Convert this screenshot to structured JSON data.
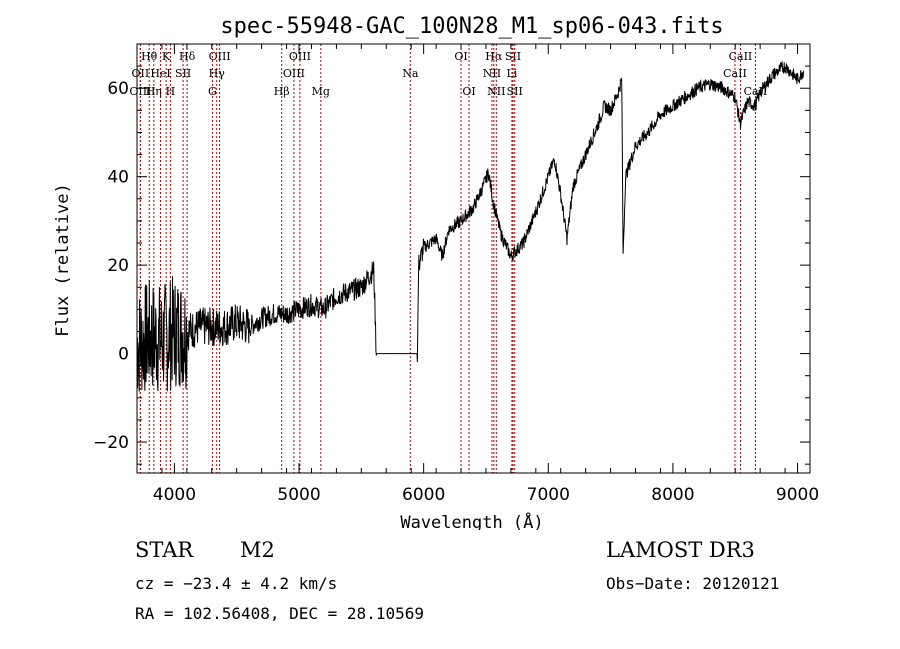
{
  "chart_data": {
    "type": "line",
    "title": "spec-55948-GAC_100N28_M1_sp06-043.fits",
    "xlabel": "Wavelength (Å)",
    "ylabel": "Flux (relative)",
    "xlim": [
      3700,
      9100
    ],
    "ylim": [
      -27,
      70
    ],
    "xticks": [
      4000,
      5000,
      6000,
      7000,
      8000,
      9000
    ],
    "yticks": [
      -20,
      0,
      20,
      40,
      60
    ],
    "line_color": "#000000",
    "marker_color": "#b00000",
    "spectrum_trend": [
      {
        "x": 3700,
        "y": 2
      },
      {
        "x": 3800,
        "y": 4
      },
      {
        "x": 3900,
        "y": 3
      },
      {
        "x": 4000,
        "y": 5
      },
      {
        "x": 4100,
        "y": 5
      },
      {
        "x": 4200,
        "y": 6
      },
      {
        "x": 4300,
        "y": 6
      },
      {
        "x": 4400,
        "y": 6
      },
      {
        "x": 4500,
        "y": 7
      },
      {
        "x": 4600,
        "y": 6
      },
      {
        "x": 4700,
        "y": 8
      },
      {
        "x": 4800,
        "y": 9
      },
      {
        "x": 4900,
        "y": 9
      },
      {
        "x": 5000,
        "y": 10
      },
      {
        "x": 5100,
        "y": 11
      },
      {
        "x": 5200,
        "y": 10
      },
      {
        "x": 5300,
        "y": 13
      },
      {
        "x": 5400,
        "y": 14
      },
      {
        "x": 5500,
        "y": 15
      },
      {
        "x": 5600,
        "y": 19
      },
      {
        "x": 5620,
        "y": 0
      },
      {
        "x": 5950,
        "y": 0
      },
      {
        "x": 5960,
        "y": 20
      },
      {
        "x": 6000,
        "y": 24
      },
      {
        "x": 6100,
        "y": 26
      },
      {
        "x": 6150,
        "y": 22
      },
      {
        "x": 6200,
        "y": 28
      },
      {
        "x": 6300,
        "y": 30
      },
      {
        "x": 6400,
        "y": 33
      },
      {
        "x": 6480,
        "y": 38
      },
      {
        "x": 6520,
        "y": 41
      },
      {
        "x": 6560,
        "y": 34
      },
      {
        "x": 6620,
        "y": 27
      },
      {
        "x": 6700,
        "y": 22
      },
      {
        "x": 6800,
        "y": 25
      },
      {
        "x": 6900,
        "y": 32
      },
      {
        "x": 7050,
        "y": 44
      },
      {
        "x": 7100,
        "y": 36
      },
      {
        "x": 7150,
        "y": 26
      },
      {
        "x": 7200,
        "y": 38
      },
      {
        "x": 7300,
        "y": 45
      },
      {
        "x": 7400,
        "y": 52
      },
      {
        "x": 7450,
        "y": 56
      },
      {
        "x": 7500,
        "y": 55
      },
      {
        "x": 7560,
        "y": 59
      },
      {
        "x": 7590,
        "y": 62
      },
      {
        "x": 7600,
        "y": 22
      },
      {
        "x": 7620,
        "y": 40
      },
      {
        "x": 7700,
        "y": 47
      },
      {
        "x": 7800,
        "y": 50
      },
      {
        "x": 7900,
        "y": 54
      },
      {
        "x": 8000,
        "y": 56
      },
      {
        "x": 8100,
        "y": 58
      },
      {
        "x": 8200,
        "y": 60
      },
      {
        "x": 8300,
        "y": 61
      },
      {
        "x": 8400,
        "y": 60
      },
      {
        "x": 8500,
        "y": 58
      },
      {
        "x": 8540,
        "y": 52
      },
      {
        "x": 8600,
        "y": 57
      },
      {
        "x": 8660,
        "y": 56
      },
      {
        "x": 8700,
        "y": 59
      },
      {
        "x": 8800,
        "y": 63
      },
      {
        "x": 8900,
        "y": 65
      },
      {
        "x": 9000,
        "y": 62
      },
      {
        "x": 9050,
        "y": 64
      }
    ],
    "line_markers": [
      {
        "label": "Hθ",
        "x": 3798,
        "row": 0
      },
      {
        "label": "K",
        "x": 3934,
        "row": 0
      },
      {
        "label": "Hδ",
        "x": 4102,
        "row": 0
      },
      {
        "label": "OIII",
        "x": 4363,
        "row": 0
      },
      {
        "label": "OIII",
        "x": 5007,
        "row": 0
      },
      {
        "label": "OI",
        "x": 6300,
        "row": 0
      },
      {
        "label": "Hα",
        "x": 6563,
        "row": 0
      },
      {
        "label": "SII",
        "x": 6717,
        "row": 0
      },
      {
        "label": "CaII",
        "x": 8542,
        "row": 0
      },
      {
        "label": "OII",
        "x": 3727,
        "row": 1
      },
      {
        "label": "HeI",
        "x": 3889,
        "row": 1
      },
      {
        "label": "SII",
        "x": 4070,
        "row": 1
      },
      {
        "label": "Hγ",
        "x": 4340,
        "row": 1
      },
      {
        "label": "OIII",
        "x": 4959,
        "row": 1
      },
      {
        "label": "Na",
        "x": 5893,
        "row": 1
      },
      {
        "label": "NII",
        "x": 6548,
        "row": 1
      },
      {
        "label": "Li",
        "x": 6708,
        "row": 1
      },
      {
        "label": "CaII",
        "x": 8498,
        "row": 1
      },
      {
        "label": "OIII",
        "x": 3727,
        "row": 2
      },
      {
        "label": "Hη",
        "x": 3835,
        "row": 2
      },
      {
        "label": "H",
        "x": 3968,
        "row": 2
      },
      {
        "label": "G",
        "x": 4305,
        "row": 2
      },
      {
        "label": "Hβ",
        "x": 4861,
        "row": 2
      },
      {
        "label": "Mg",
        "x": 5175,
        "row": 2
      },
      {
        "label": "OI",
        "x": 6364,
        "row": 2
      },
      {
        "label": "NII",
        "x": 6583,
        "row": 2
      },
      {
        "label": "SII",
        "x": 6731,
        "row": 2
      },
      {
        "label": "CaII",
        "x": 8662,
        "row": 2
      }
    ]
  },
  "info": {
    "object_type": "STAR",
    "subclass": "M2",
    "cz": "cz = −23.4 ± 4.2 km/s",
    "coords": "RA = 102.56408, DEC =  28.10569",
    "survey": "LAMOST DR3",
    "obs_date": "Obs−Date: 20120121"
  }
}
